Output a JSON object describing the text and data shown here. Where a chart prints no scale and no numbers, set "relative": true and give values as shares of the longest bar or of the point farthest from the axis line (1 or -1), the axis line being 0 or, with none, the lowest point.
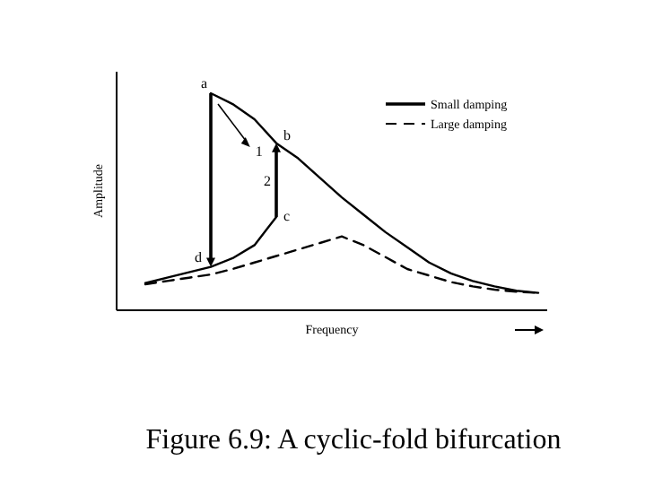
{
  "chart_data": {
    "type": "line",
    "title": "Figure 6.9: A cyclic-fold bifurcation",
    "xlabel": "Frequency",
    "ylabel": "Amplitude",
    "relative": true,
    "legend": "top right",
    "categories": [
      null,
      null,
      null,
      null,
      null,
      null,
      null,
      null,
      null,
      null,
      null,
      null,
      null,
      null,
      null,
      null,
      null,
      null,
      null
    ],
    "series": [
      {
        "name": "Small damping",
        "color": "#000000",
        "line_style": "solid",
        "values": [
          null,
          null,
          null,
          1.0,
          0.95,
          0.88,
          0.77,
          0.7,
          0.61,
          0.52,
          0.44,
          0.36,
          0.29,
          0.22,
          0.17,
          0.135,
          0.11,
          0.09,
          0.08
        ]
      },
      {
        "color": "#000000",
        "line_style": "solid",
        "values": [
          0.125,
          0.15,
          0.175,
          0.2,
          0.24,
          0.3,
          0.43,
          null,
          null,
          null,
          null,
          null,
          null,
          null,
          null,
          null,
          null,
          null,
          null
        ]
      },
      {
        "name": "Large damping",
        "color": "#000000",
        "line_style": "dashed",
        "values": [
          0.12,
          0.135,
          0.15,
          0.165,
          0.19,
          0.22,
          0.25,
          0.28,
          0.31,
          0.34,
          0.3,
          0.245,
          0.19,
          0.16,
          0.13,
          0.11,
          0.095,
          0.085,
          0.08
        ]
      }
    ],
    "annotations": [
      "a",
      "b",
      "c",
      "d",
      "1",
      "2"
    ]
  }
}
